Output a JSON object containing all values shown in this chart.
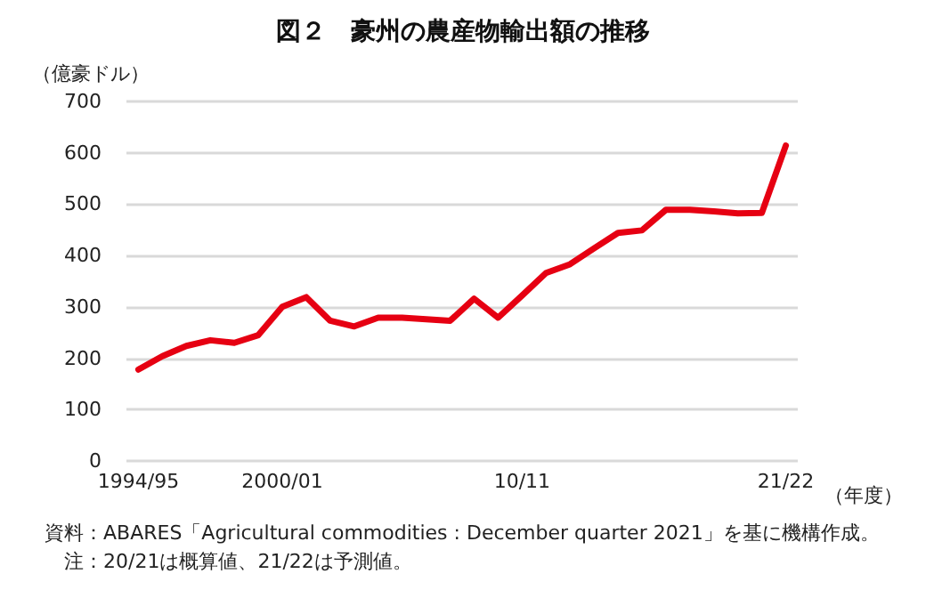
{
  "chart_data": {
    "type": "line",
    "title": "図２　豪州の農産物輸出額の推移",
    "ylabel": "（億豪ドル）",
    "xlabel": "（年度）",
    "categories": [
      "1994/95",
      null,
      null,
      null,
      null,
      null,
      "2000/01",
      null,
      null,
      null,
      null,
      null,
      null,
      null,
      null,
      null,
      "10/11",
      null,
      null,
      null,
      null,
      null,
      null,
      null,
      null,
      null,
      null,
      "21/22"
    ],
    "series": [
      {
        "color": "#e60012",
        "values": [
          178,
          204,
          224,
          235,
          230,
          245,
          300,
          319,
          273,
          262,
          279,
          279,
          276,
          273,
          316,
          279,
          322,
          366,
          383,
          414,
          444,
          449,
          489,
          489,
          486,
          482,
          483,
          614
        ]
      }
    ],
    "ylim": [
      0,
      700
    ],
    "yticks": [
      0,
      100,
      200,
      300,
      400,
      500,
      600,
      700
    ],
    "grid": "y",
    "marker": "none",
    "line_style": "solid",
    "annotations": [
      "資料：ABARES「Agricultural commodities : December quarter 2021」を基に機構作成。",
      "注：20/21は概算値、21/22は予測値。"
    ]
  }
}
